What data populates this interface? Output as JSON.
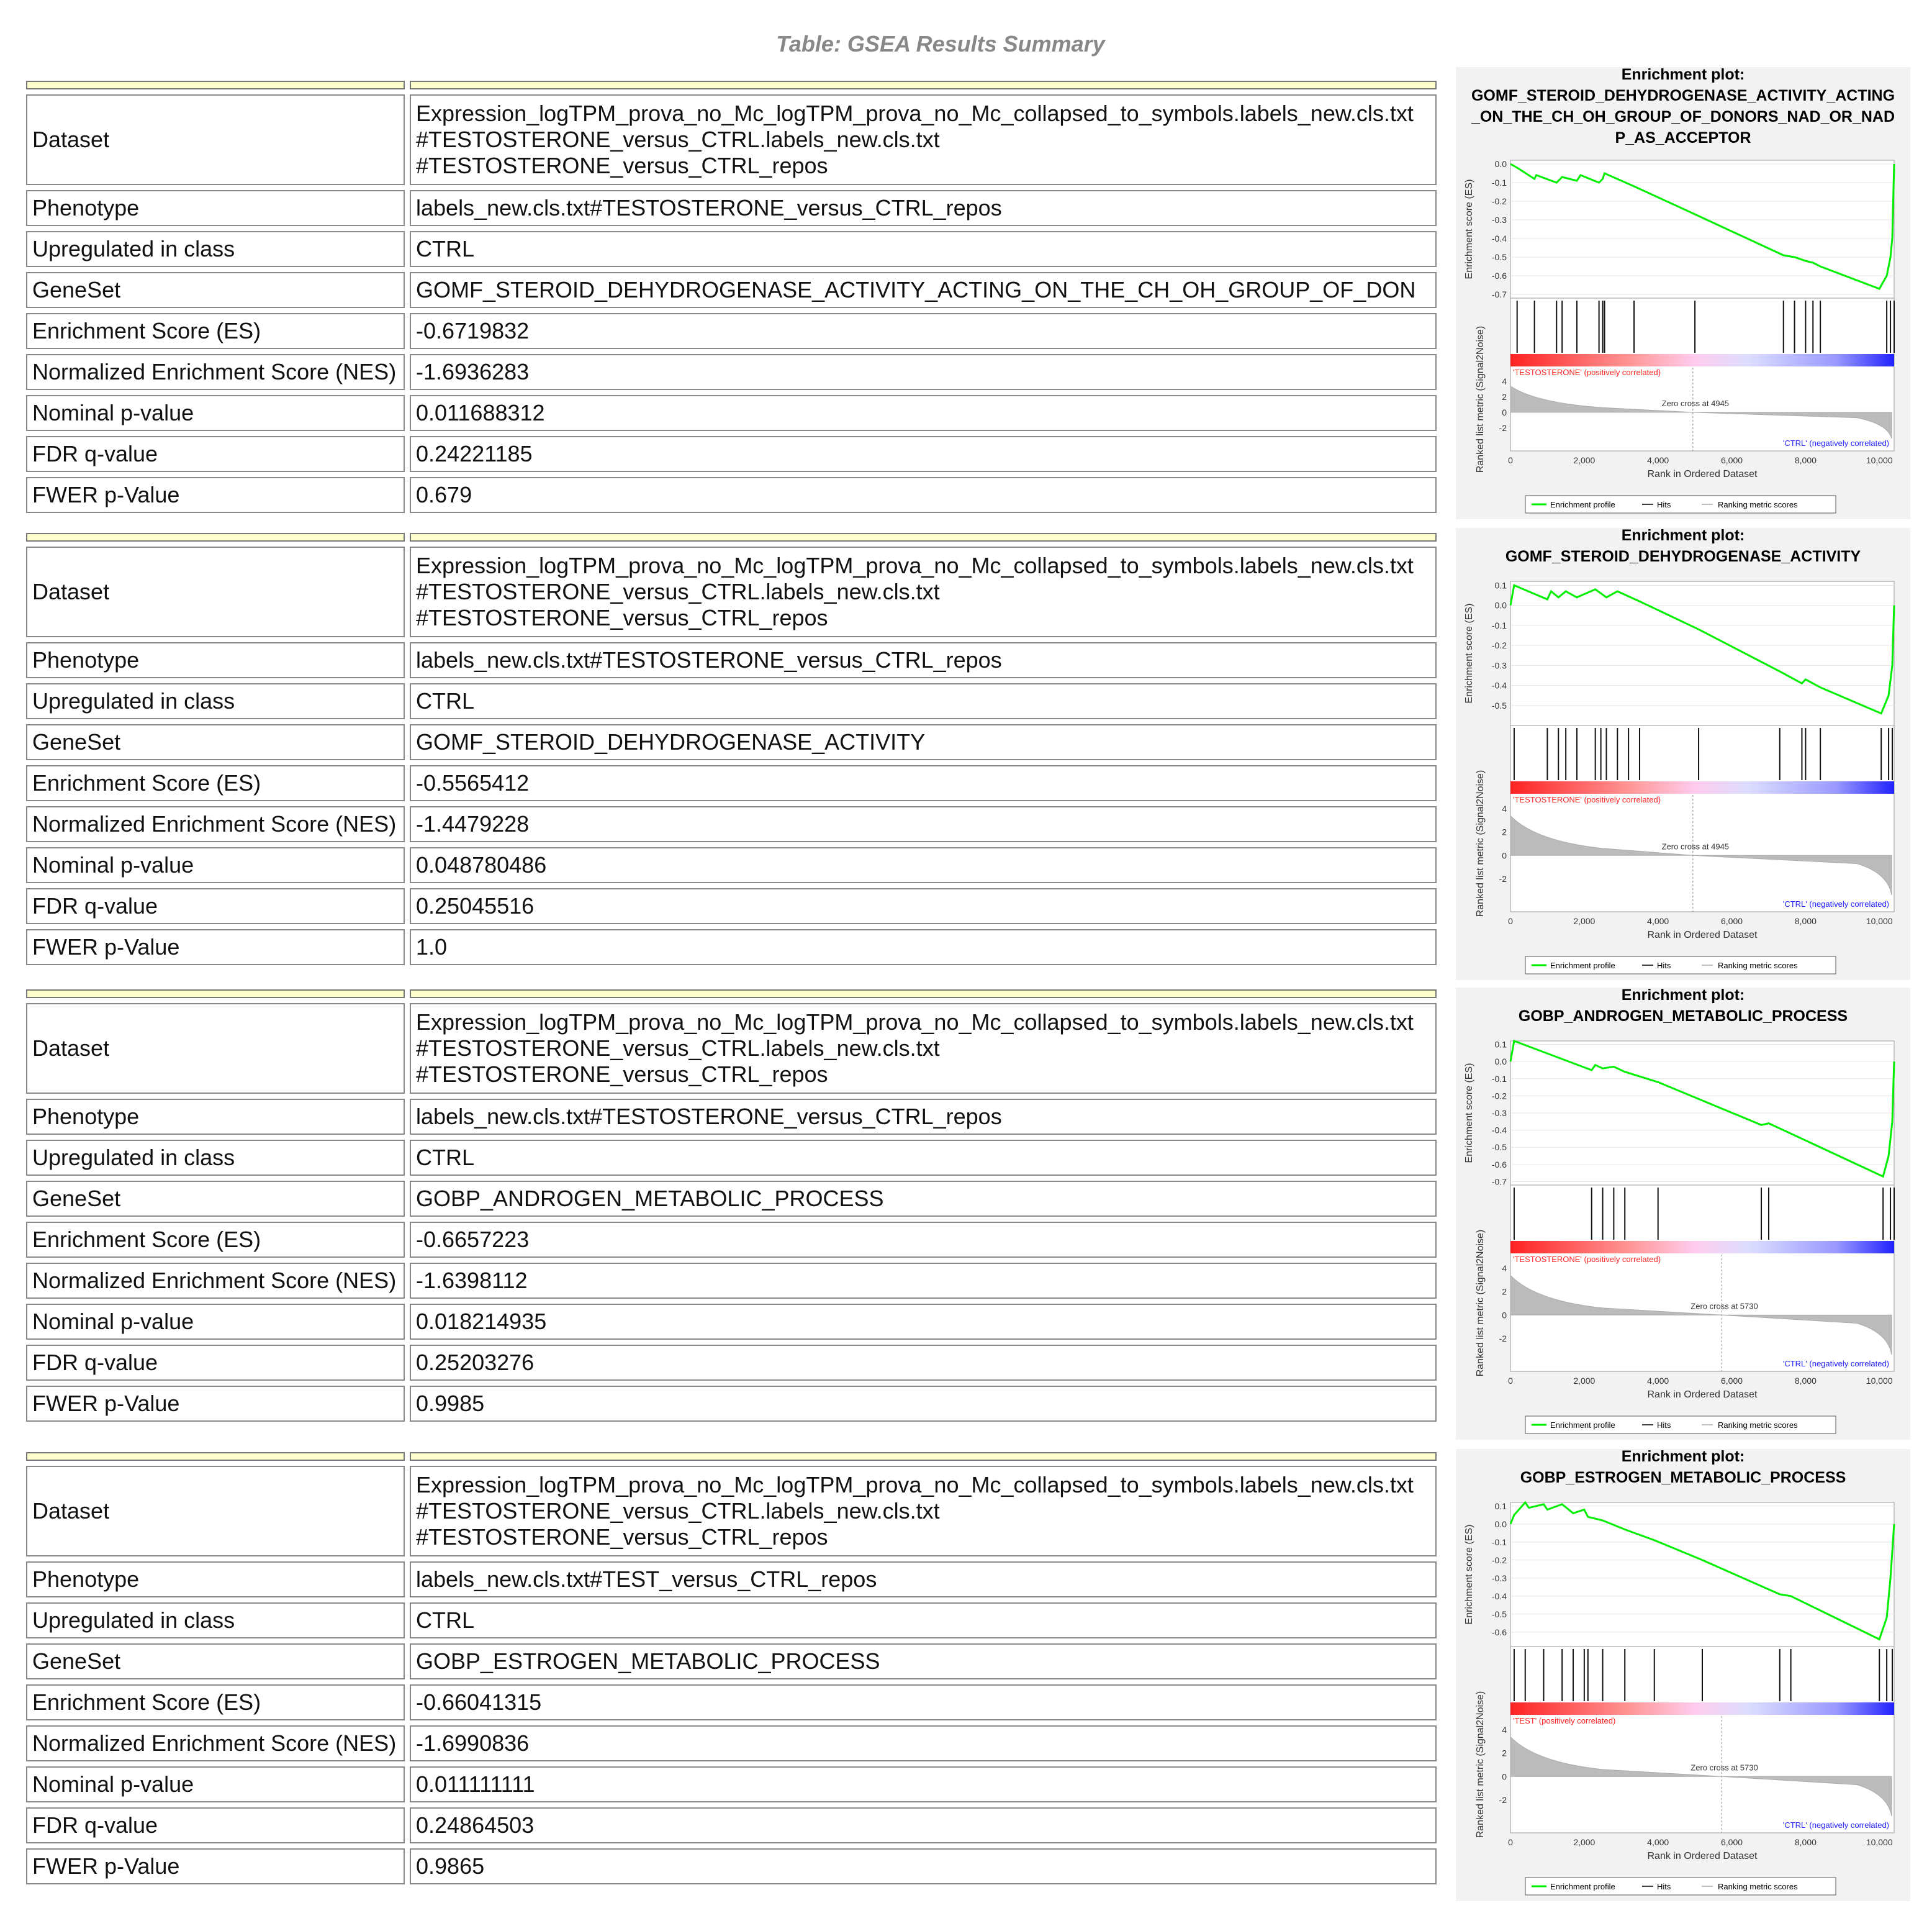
{
  "title": "Table: GSEA Results Summary",
  "labels": [
    "Dataset",
    "Phenotype",
    "Upregulated in class",
    "GeneSet",
    "Enrichment Score (ES)",
    "Normalized Enrichment Score (NES)",
    "Nominal p-value",
    "FDR q-value",
    "FWER p-Value"
  ],
  "plot_common": {
    "plot_heading": "Enrichment plot:",
    "ylabel_es": "Enrichment score (ES)",
    "ylabel_metric": "Ranked list metric (Signal2Noise)",
    "xlabel": "Rank in Ordered Dataset",
    "legend": [
      "Enrichment profile",
      "Hits",
      "Ranking metric scores"
    ],
    "neg_label": "'CTRL' (negatively correlated)",
    "x_ticks": [
      "0",
      "2,000",
      "4,000",
      "6,000",
      "8,000",
      "10,000"
    ],
    "metric_ticks": [
      "4",
      "2",
      "0",
      "-2"
    ],
    "profile_color": "#00ee00",
    "pos_color": "#ff2222",
    "neg_color": "#2222ff"
  },
  "results": [
    {
      "dataset": [
        "Expression_logTPM_prova_no_Mc_logTPM_prova_no_Mc_collapsed_to_symbols.labels_new.cls.txt",
        "#TESTOSTERONE_versus_CTRL.labels_new.cls.txt",
        "#TESTOSTERONE_versus_CTRL_repos"
      ],
      "phenotype": "labels_new.cls.txt#TESTOSTERONE_versus_CTRL_repos",
      "upregulated": "CTRL",
      "geneset": "GOMF_STEROID_DEHYDROGENASE_ACTIVITY_ACTING_ON_THE_CH_OH_GROUP_OF_DON",
      "es": "-0.6719832",
      "nes": "-1.6936283",
      "nominal_p": "0.011688312",
      "fdr_q": "0.24221185",
      "fwer_p": "0.679",
      "plot": {
        "title_lines": [
          "GOMF_STEROID_DEHYDROGENASE_ACTIVITY_ACTING",
          "_ON_THE_CH_OH_GROUP_OF_DONORS_NAD_OR_NAD",
          "P_AS_ACCEPTOR"
        ],
        "es_ticks": [
          "0.0",
          "-0.1",
          "-0.2",
          "-0.3",
          "-0.4",
          "-0.5",
          "-0.6",
          "-0.7"
        ],
        "es_range": [
          -0.72,
          0.02
        ],
        "pos_label": "'TESTOSTERONE' (positively correlated)",
        "zero_cross": "Zero cross at 4945",
        "zero_rank": 4945,
        "hits": [
          180,
          650,
          1250,
          1400,
          1800,
          2400,
          2500,
          2550,
          3350,
          5000,
          7400,
          7700,
          8000,
          8200,
          8400,
          10200,
          10300,
          10400
        ],
        "profile": [
          [
            0,
            0.0
          ],
          [
            180,
            -0.02
          ],
          [
            650,
            -0.08
          ],
          [
            700,
            -0.06
          ],
          [
            1250,
            -0.1
          ],
          [
            1400,
            -0.07
          ],
          [
            1800,
            -0.09
          ],
          [
            1900,
            -0.06
          ],
          [
            2400,
            -0.1
          ],
          [
            2500,
            -0.08
          ],
          [
            2550,
            -0.05
          ],
          [
            3350,
            -0.12
          ],
          [
            5000,
            -0.27
          ],
          [
            7400,
            -0.49
          ],
          [
            7700,
            -0.5
          ],
          [
            8000,
            -0.52
          ],
          [
            8200,
            -0.53
          ],
          [
            8400,
            -0.55
          ],
          [
            10000,
            -0.67
          ],
          [
            10200,
            -0.6
          ],
          [
            10300,
            -0.5
          ],
          [
            10350,
            -0.4
          ],
          [
            10400,
            0.0
          ]
        ]
      }
    },
    {
      "dataset": [
        "Expression_logTPM_prova_no_Mc_logTPM_prova_no_Mc_collapsed_to_symbols.labels_new.cls.txt",
        "#TESTOSTERONE_versus_CTRL.labels_new.cls.txt",
        "#TESTOSTERONE_versus_CTRL_repos"
      ],
      "phenotype": "labels_new.cls.txt#TESTOSTERONE_versus_CTRL_repos",
      "upregulated": "CTRL",
      "geneset": "GOMF_STEROID_DEHYDROGENASE_ACTIVITY",
      "es": "-0.5565412",
      "nes": "-1.4479228",
      "nominal_p": "0.048780486",
      "fdr_q": "0.25045516",
      "fwer_p": "1.0",
      "plot": {
        "title_lines": [
          "GOMF_STEROID_DEHYDROGENASE_ACTIVITY"
        ],
        "es_ticks": [
          "0.1",
          "0.0",
          "-0.1",
          "-0.2",
          "-0.3",
          "-0.4",
          "-0.5"
        ],
        "es_range": [
          -0.6,
          0.12
        ],
        "pos_label": "'TESTOSTERONE' (positively correlated)",
        "zero_cross": "Zero cross at 4945",
        "zero_rank": 4945,
        "hits": [
          100,
          1000,
          1300,
          1500,
          1800,
          2300,
          2450,
          2600,
          2900,
          3200,
          3500,
          5100,
          7300,
          7900,
          8000,
          8400,
          10050,
          10250,
          10350
        ],
        "profile": [
          [
            0,
            0.0
          ],
          [
            100,
            0.1
          ],
          [
            1000,
            0.03
          ],
          [
            1100,
            0.07
          ],
          [
            1300,
            0.04
          ],
          [
            1500,
            0.07
          ],
          [
            1800,
            0.04
          ],
          [
            2300,
            0.08
          ],
          [
            2450,
            0.06
          ],
          [
            2600,
            0.04
          ],
          [
            2900,
            0.07
          ],
          [
            3500,
            0.02
          ],
          [
            5100,
            -0.12
          ],
          [
            7300,
            -0.33
          ],
          [
            7900,
            -0.39
          ],
          [
            8000,
            -0.37
          ],
          [
            8400,
            -0.41
          ],
          [
            10050,
            -0.54
          ],
          [
            10250,
            -0.45
          ],
          [
            10350,
            -0.3
          ],
          [
            10400,
            0.0
          ]
        ]
      }
    },
    {
      "dataset": [
        "Expression_logTPM_prova_no_Mc_logTPM_prova_no_Mc_collapsed_to_symbols.labels_new.cls.txt",
        "#TESTOSTERONE_versus_CTRL.labels_new.cls.txt",
        "#TESTOSTERONE_versus_CTRL_repos"
      ],
      "phenotype": "labels_new.cls.txt#TESTOSTERONE_versus_CTRL_repos",
      "upregulated": "CTRL",
      "geneset": "GOBP_ANDROGEN_METABOLIC_PROCESS",
      "es": "-0.6657223",
      "nes": "-1.6398112",
      "nominal_p": "0.018214935",
      "fdr_q": "0.25203276",
      "fwer_p": "0.9985",
      "plot": {
        "title_lines": [
          "GOBP_ANDROGEN_METABOLIC_PROCESS"
        ],
        "es_ticks": [
          "0.1",
          "0.0",
          "-0.1",
          "-0.2",
          "-0.3",
          "-0.4",
          "-0.5",
          "-0.6",
          "-0.7"
        ],
        "es_range": [
          -0.72,
          0.12
        ],
        "pos_label": "'TESTOSTERONE' (positively correlated)",
        "zero_cross": "Zero cross at 5730",
        "zero_rank": 5730,
        "hits": [
          100,
          2200,
          2500,
          2800,
          3100,
          4000,
          6800,
          7000,
          10100,
          10300,
          10400
        ],
        "profile": [
          [
            0,
            0.0
          ],
          [
            100,
            0.12
          ],
          [
            2200,
            -0.05
          ],
          [
            2300,
            -0.02
          ],
          [
            2500,
            -0.04
          ],
          [
            2800,
            -0.03
          ],
          [
            3100,
            -0.06
          ],
          [
            4000,
            -0.12
          ],
          [
            6800,
            -0.37
          ],
          [
            7000,
            -0.36
          ],
          [
            10100,
            -0.67
          ],
          [
            10250,
            -0.55
          ],
          [
            10350,
            -0.35
          ],
          [
            10400,
            0.0
          ]
        ]
      }
    },
    {
      "dataset": [
        "Expression_logTPM_prova_no_Mc_logTPM_prova_no_Mc_collapsed_to_symbols.labels_new.cls.txt",
        "#TESTOSTERONE_versus_CTRL.labels_new.cls.txt",
        "#TESTOSTERONE_versus_CTRL_repos"
      ],
      "phenotype": "labels_new.cls.txt#TEST_versus_CTRL_repos",
      "upregulated": "CTRL",
      "geneset": "GOBP_ESTROGEN_METABOLIC_PROCESS",
      "es": "-0.66041315",
      "nes": "-1.6990836",
      "nominal_p": "0.011111111",
      "fdr_q": "0.24864503",
      "fwer_p": "0.9865",
      "plot": {
        "title_lines": [
          "GOBP_ESTROGEN_METABOLIC_PROCESS"
        ],
        "es_ticks": [
          "0.1",
          "0.0",
          "-0.1",
          "-0.2",
          "-0.3",
          "-0.4",
          "-0.5",
          "-0.6"
        ],
        "es_range": [
          -0.68,
          0.12
        ],
        "pos_label": "'TEST' (positively correlated)",
        "zero_cross": "Zero cross at 5730",
        "zero_rank": 5730,
        "hits": [
          100,
          400,
          900,
          1400,
          1700,
          2000,
          2100,
          2500,
          3100,
          3900,
          5200,
          7300,
          7600,
          10000,
          10200,
          10350
        ],
        "profile": [
          [
            0,
            0.0
          ],
          [
            100,
            0.05
          ],
          [
            400,
            0.12
          ],
          [
            500,
            0.09
          ],
          [
            900,
            0.11
          ],
          [
            1000,
            0.08
          ],
          [
            1400,
            0.11
          ],
          [
            1700,
            0.06
          ],
          [
            2000,
            0.08
          ],
          [
            2100,
            0.04
          ],
          [
            2500,
            0.02
          ],
          [
            3100,
            -0.03
          ],
          [
            3900,
            -0.09
          ],
          [
            5200,
            -0.2
          ],
          [
            7300,
            -0.39
          ],
          [
            7600,
            -0.4
          ],
          [
            10000,
            -0.64
          ],
          [
            10200,
            -0.52
          ],
          [
            10300,
            -0.3
          ],
          [
            10400,
            0.0
          ]
        ]
      }
    }
  ]
}
